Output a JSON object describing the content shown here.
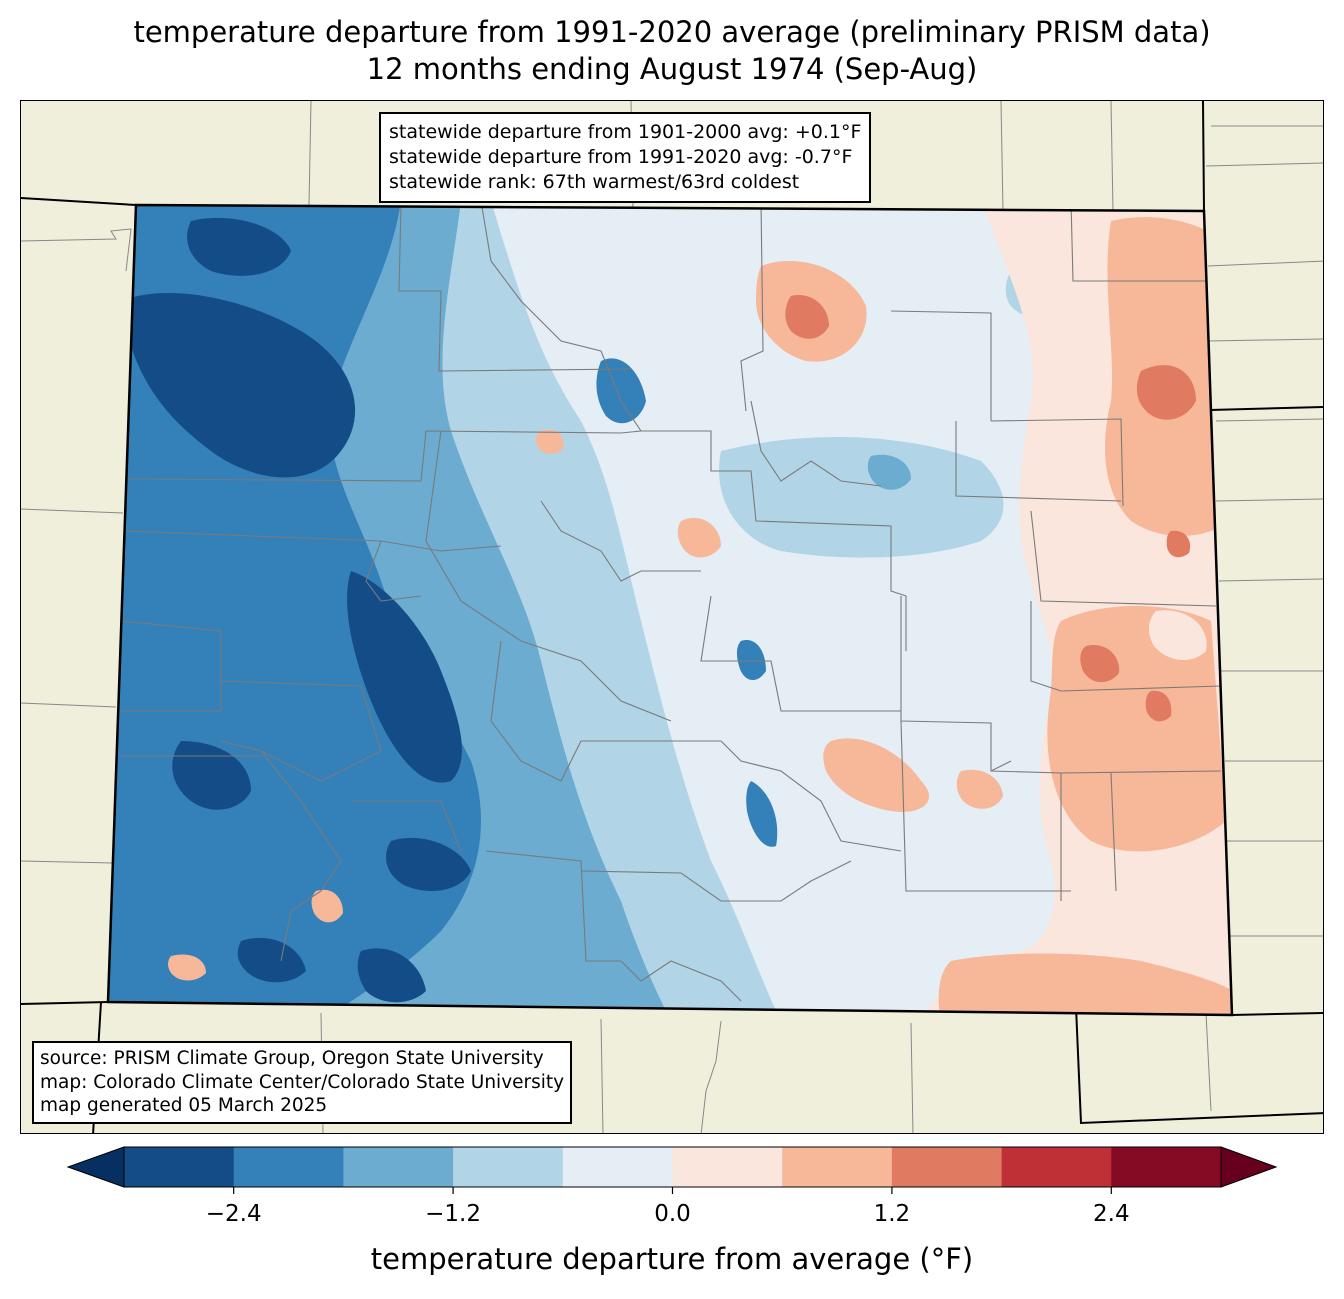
{
  "title": {
    "line1": "temperature departure from 1991-2020 average (preliminary PRISM data)",
    "line2": "12 months ending August 1974 (Sep-Aug)"
  },
  "stats": {
    "line1": "statewide departure from 1901-2000 avg: +0.1°F",
    "line2": "statewide departure from 1991-2020 avg: -0.7°F",
    "line3": "statewide rank: 67th warmest/63rd coldest"
  },
  "source": {
    "line1": "source: PRISM Climate Group, Oregon State University",
    "line2": "map: Colorado Climate Center/Colorado State University",
    "line3": "map generated 05 March 2025"
  },
  "colorbar": {
    "label": "temperature departure from average (°F)",
    "bins": [
      -3.0,
      -2.4,
      -1.8,
      -1.2,
      -0.6,
      0.0,
      0.6,
      1.2,
      1.8,
      2.4,
      3.0
    ],
    "ticks": [
      -2.4,
      -1.2,
      0.0,
      1.2,
      2.4
    ],
    "tick_labels": [
      "−2.4",
      "−1.2",
      "0.0",
      "1.2",
      "2.4"
    ],
    "under_color": "#053061",
    "over_color": "#67001f",
    "colors": [
      "#134c87",
      "#3480b9",
      "#6bacd0",
      "#b1d4e7",
      "#e4eef4",
      "#fae6dc",
      "#f7b799",
      "#e07b62",
      "#be3036",
      "#850a24"
    ]
  },
  "map": {
    "background_color": "#efefdc",
    "state": "Colorado",
    "field": "12-month temperature departure (°F)"
  }
}
